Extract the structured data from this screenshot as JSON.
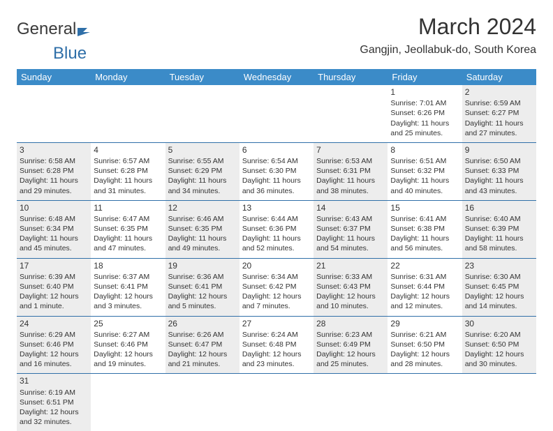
{
  "logo": {
    "text1": "General",
    "text2": "Blue"
  },
  "title": "March 2024",
  "location": "Gangjin, Jeollabuk-do, South Korea",
  "colors": {
    "header_bg": "#3b8bc8",
    "header_text": "#ffffff",
    "border": "#2f6fa8",
    "shade": "#ededed",
    "text": "#333333",
    "logo_blue": "#2f6fa8"
  },
  "columns": [
    "Sunday",
    "Monday",
    "Tuesday",
    "Wednesday",
    "Thursday",
    "Friday",
    "Saturday"
  ],
  "weeks": [
    [
      null,
      null,
      null,
      null,
      null,
      {
        "n": "1",
        "sr": "Sunrise: 7:01 AM",
        "ss": "Sunset: 6:26 PM",
        "dl": "Daylight: 11 hours and 25 minutes.",
        "shade": false
      },
      {
        "n": "2",
        "sr": "Sunrise: 6:59 AM",
        "ss": "Sunset: 6:27 PM",
        "dl": "Daylight: 11 hours and 27 minutes.",
        "shade": true
      }
    ],
    [
      {
        "n": "3",
        "sr": "Sunrise: 6:58 AM",
        "ss": "Sunset: 6:28 PM",
        "dl": "Daylight: 11 hours and 29 minutes.",
        "shade": true
      },
      {
        "n": "4",
        "sr": "Sunrise: 6:57 AM",
        "ss": "Sunset: 6:28 PM",
        "dl": "Daylight: 11 hours and 31 minutes.",
        "shade": false
      },
      {
        "n": "5",
        "sr": "Sunrise: 6:55 AM",
        "ss": "Sunset: 6:29 PM",
        "dl": "Daylight: 11 hours and 34 minutes.",
        "shade": true
      },
      {
        "n": "6",
        "sr": "Sunrise: 6:54 AM",
        "ss": "Sunset: 6:30 PM",
        "dl": "Daylight: 11 hours and 36 minutes.",
        "shade": false
      },
      {
        "n": "7",
        "sr": "Sunrise: 6:53 AM",
        "ss": "Sunset: 6:31 PM",
        "dl": "Daylight: 11 hours and 38 minutes.",
        "shade": true
      },
      {
        "n": "8",
        "sr": "Sunrise: 6:51 AM",
        "ss": "Sunset: 6:32 PM",
        "dl": "Daylight: 11 hours and 40 minutes.",
        "shade": false
      },
      {
        "n": "9",
        "sr": "Sunrise: 6:50 AM",
        "ss": "Sunset: 6:33 PM",
        "dl": "Daylight: 11 hours and 43 minutes.",
        "shade": true
      }
    ],
    [
      {
        "n": "10",
        "sr": "Sunrise: 6:48 AM",
        "ss": "Sunset: 6:34 PM",
        "dl": "Daylight: 11 hours and 45 minutes.",
        "shade": true
      },
      {
        "n": "11",
        "sr": "Sunrise: 6:47 AM",
        "ss": "Sunset: 6:35 PM",
        "dl": "Daylight: 11 hours and 47 minutes.",
        "shade": false
      },
      {
        "n": "12",
        "sr": "Sunrise: 6:46 AM",
        "ss": "Sunset: 6:35 PM",
        "dl": "Daylight: 11 hours and 49 minutes.",
        "shade": true
      },
      {
        "n": "13",
        "sr": "Sunrise: 6:44 AM",
        "ss": "Sunset: 6:36 PM",
        "dl": "Daylight: 11 hours and 52 minutes.",
        "shade": false
      },
      {
        "n": "14",
        "sr": "Sunrise: 6:43 AM",
        "ss": "Sunset: 6:37 PM",
        "dl": "Daylight: 11 hours and 54 minutes.",
        "shade": true
      },
      {
        "n": "15",
        "sr": "Sunrise: 6:41 AM",
        "ss": "Sunset: 6:38 PM",
        "dl": "Daylight: 11 hours and 56 minutes.",
        "shade": false
      },
      {
        "n": "16",
        "sr": "Sunrise: 6:40 AM",
        "ss": "Sunset: 6:39 PM",
        "dl": "Daylight: 11 hours and 58 minutes.",
        "shade": true
      }
    ],
    [
      {
        "n": "17",
        "sr": "Sunrise: 6:39 AM",
        "ss": "Sunset: 6:40 PM",
        "dl": "Daylight: 12 hours and 1 minute.",
        "shade": true
      },
      {
        "n": "18",
        "sr": "Sunrise: 6:37 AM",
        "ss": "Sunset: 6:41 PM",
        "dl": "Daylight: 12 hours and 3 minutes.",
        "shade": false
      },
      {
        "n": "19",
        "sr": "Sunrise: 6:36 AM",
        "ss": "Sunset: 6:41 PM",
        "dl": "Daylight: 12 hours and 5 minutes.",
        "shade": true
      },
      {
        "n": "20",
        "sr": "Sunrise: 6:34 AM",
        "ss": "Sunset: 6:42 PM",
        "dl": "Daylight: 12 hours and 7 minutes.",
        "shade": false
      },
      {
        "n": "21",
        "sr": "Sunrise: 6:33 AM",
        "ss": "Sunset: 6:43 PM",
        "dl": "Daylight: 12 hours and 10 minutes.",
        "shade": true
      },
      {
        "n": "22",
        "sr": "Sunrise: 6:31 AM",
        "ss": "Sunset: 6:44 PM",
        "dl": "Daylight: 12 hours and 12 minutes.",
        "shade": false
      },
      {
        "n": "23",
        "sr": "Sunrise: 6:30 AM",
        "ss": "Sunset: 6:45 PM",
        "dl": "Daylight: 12 hours and 14 minutes.",
        "shade": true
      }
    ],
    [
      {
        "n": "24",
        "sr": "Sunrise: 6:29 AM",
        "ss": "Sunset: 6:46 PM",
        "dl": "Daylight: 12 hours and 16 minutes.",
        "shade": true
      },
      {
        "n": "25",
        "sr": "Sunrise: 6:27 AM",
        "ss": "Sunset: 6:46 PM",
        "dl": "Daylight: 12 hours and 19 minutes.",
        "shade": false
      },
      {
        "n": "26",
        "sr": "Sunrise: 6:26 AM",
        "ss": "Sunset: 6:47 PM",
        "dl": "Daylight: 12 hours and 21 minutes.",
        "shade": true
      },
      {
        "n": "27",
        "sr": "Sunrise: 6:24 AM",
        "ss": "Sunset: 6:48 PM",
        "dl": "Daylight: 12 hours and 23 minutes.",
        "shade": false
      },
      {
        "n": "28",
        "sr": "Sunrise: 6:23 AM",
        "ss": "Sunset: 6:49 PM",
        "dl": "Daylight: 12 hours and 25 minutes.",
        "shade": true
      },
      {
        "n": "29",
        "sr": "Sunrise: 6:21 AM",
        "ss": "Sunset: 6:50 PM",
        "dl": "Daylight: 12 hours and 28 minutes.",
        "shade": false
      },
      {
        "n": "30",
        "sr": "Sunrise: 6:20 AM",
        "ss": "Sunset: 6:50 PM",
        "dl": "Daylight: 12 hours and 30 minutes.",
        "shade": true
      }
    ],
    [
      {
        "n": "31",
        "sr": "Sunrise: 6:19 AM",
        "ss": "Sunset: 6:51 PM",
        "dl": "Daylight: 12 hours and 32 minutes.",
        "shade": true
      },
      null,
      null,
      null,
      null,
      null,
      null
    ]
  ]
}
